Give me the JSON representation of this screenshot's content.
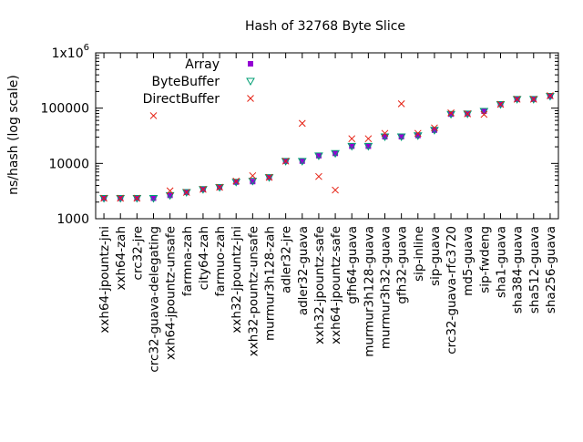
{
  "chart_data": {
    "type": "scatter",
    "title": "Hash of 32768 Byte Slice",
    "xlabel": "",
    "ylabel": "ns/hash (log scale)",
    "y_scale": "log",
    "ylim": [
      1000,
      1000000
    ],
    "y_ticks": [
      {
        "value": 1000,
        "label": "1000"
      },
      {
        "value": 10000,
        "label": "10000"
      },
      {
        "value": 100000,
        "label": "100000"
      },
      {
        "value": 1000000,
        "label": "1x10",
        "sup": "6"
      }
    ],
    "grid": false,
    "legend_position": "top-left",
    "categories": [
      "xxh64-jpountz-jni",
      "xxh64-zah",
      "crc32-jre",
      "crc32-guava-delegating",
      "xxh64-jpountz-unsafe",
      "farmna-zah",
      "city64-zah",
      "farmuo-zah",
      "xxh32-jpountz-jni",
      "xxh32-pountz-unsafe",
      "murmur3h128-zah",
      "adler32-jre",
      "adler32-guava",
      "xxh32-jpountz-safe",
      "xxh64-jpountz-safe",
      "gfh64-guava",
      "murmur3h128-guava",
      "murmur3h32-guava",
      "gfh32-guava",
      "sip-inline",
      "sip-guava",
      "crc32-guava-rfc3720",
      "md5-guava",
      "sip-fwdeng",
      "sha1-guava",
      "sha384-guava",
      "sha512-guava",
      "sha256-guava"
    ],
    "series": [
      {
        "name": "Array",
        "color": "#9400d3",
        "marker": "filled-square",
        "values": [
          2350,
          2350,
          2350,
          2350,
          2650,
          3000,
          3400,
          3700,
          4600,
          4700,
          5600,
          11000,
          11000,
          13800,
          15200,
          20500,
          20500,
          30500,
          30500,
          32000,
          40000,
          78000,
          79000,
          88000,
          117000,
          145000,
          145000,
          165000
        ]
      },
      {
        "name": "ByteBuffer",
        "color": "#009e73",
        "marker": "triangle-down",
        "values": [
          2350,
          2350,
          2350,
          2350,
          2650,
          3000,
          3400,
          3700,
          4600,
          4800,
          5600,
          11000,
          11000,
          13800,
          15200,
          20500,
          20500,
          30500,
          30500,
          32000,
          40000,
          78000,
          79000,
          88000,
          117000,
          145000,
          145000,
          165000
        ]
      },
      {
        "name": "DirectBuffer",
        "color": "#e51e10",
        "marker": "x",
        "values": [
          2350,
          2350,
          2350,
          73000,
          3200,
          3000,
          3400,
          3700,
          4800,
          6000,
          5600,
          11000,
          53000,
          5800,
          3300,
          28000,
          28000,
          35000,
          120000,
          35000,
          44000,
          82000,
          79000,
          77000,
          117000,
          145000,
          145000,
          168000
        ]
      }
    ]
  }
}
